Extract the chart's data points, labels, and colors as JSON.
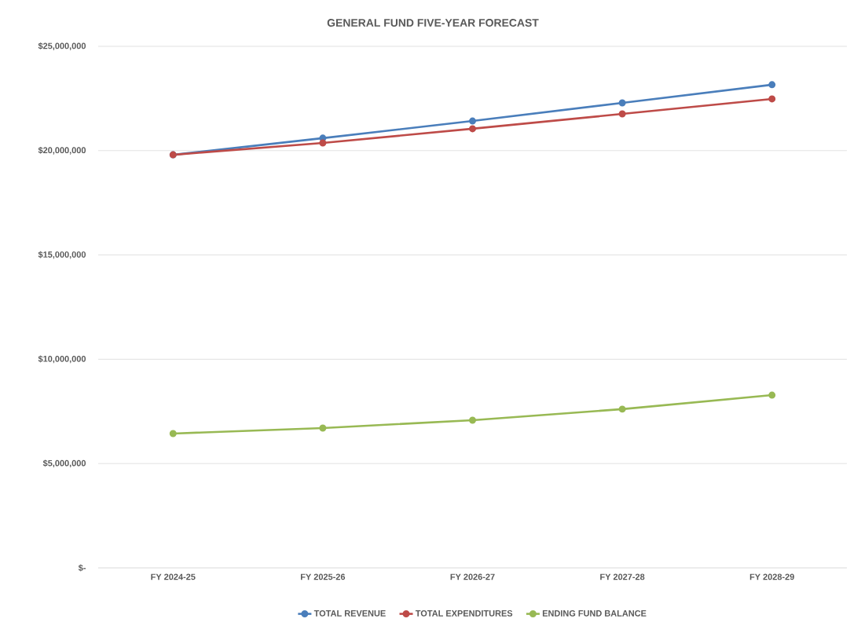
{
  "chart_data": {
    "type": "line",
    "title": "GENERAL FUND FIVE-YEAR FORECAST",
    "categories": [
      "FY 2024-25",
      "FY 2025-26",
      "FY 2026-27",
      "FY 2027-28",
      "FY 2028-29"
    ],
    "series": [
      {
        "name": "TOTAL REVENUE",
        "color": "#4a7ebb",
        "values": [
          19800000,
          20600000,
          21420000,
          22290000,
          23160000
        ]
      },
      {
        "name": "TOTAL EXPENDITURES",
        "color": "#be4b48",
        "values": [
          19800000,
          20370000,
          21050000,
          21760000,
          22480000
        ]
      },
      {
        "name": "ENDING FUND BALANCE",
        "color": "#98b954",
        "values": [
          6440000,
          6700000,
          7080000,
          7610000,
          8280000
        ]
      }
    ],
    "ylim": [
      0,
      25000000
    ],
    "yticks": [
      {
        "value": 0,
        "label": "$-"
      },
      {
        "value": 5000000,
        "label": "$5,000,000"
      },
      {
        "value": 10000000,
        "label": "$10,000,000"
      },
      {
        "value": 15000000,
        "label": "$15,000,000"
      },
      {
        "value": 20000000,
        "label": "$20,000,000"
      },
      {
        "value": 25000000,
        "label": "$25,000,000"
      }
    ],
    "grid": "y",
    "legend": "bottom",
    "marker": "circle",
    "line_style": "solid"
  }
}
